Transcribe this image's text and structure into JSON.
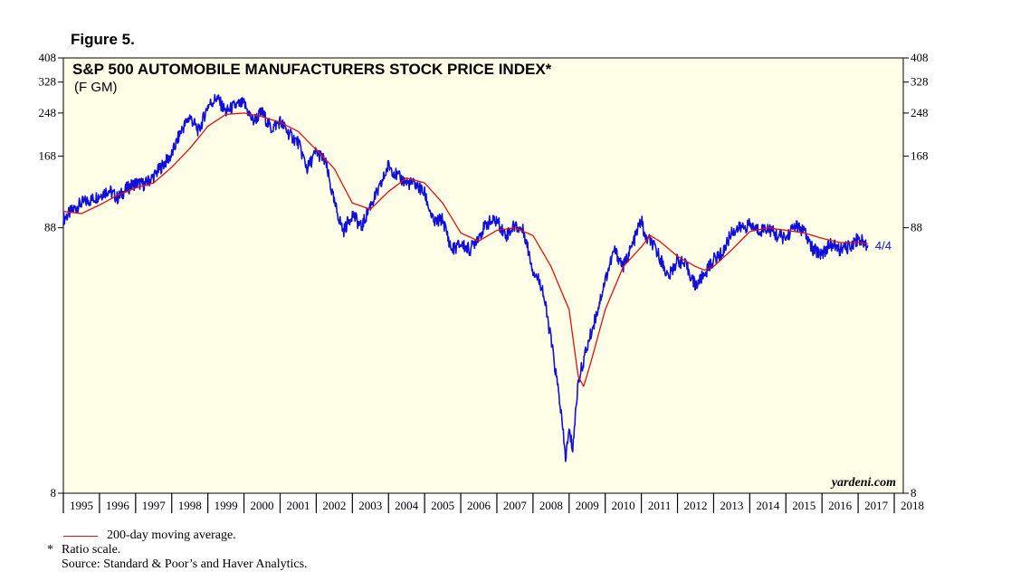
{
  "figure_label": "Figure 5.",
  "chart_data": {
    "type": "line",
    "title": "S&P 500 AUTOMOBILE MANUFACTURERS STOCK PRICE INDEX*",
    "subtitle": "(F GM)",
    "scale": "log",
    "ylim": [
      8,
      408
    ],
    "y_ticks": [
      8,
      88,
      168,
      248,
      328,
      408
    ],
    "x_ticks": [
      "1995",
      "1996",
      "1997",
      "1998",
      "1999",
      "2000",
      "2001",
      "2002",
      "2003",
      "2004",
      "2005",
      "2006",
      "2007",
      "2008",
      "2009",
      "2010",
      "2011",
      "2012",
      "2013",
      "2014",
      "2015",
      "2016",
      "2017",
      "2018"
    ],
    "xlim": [
      1995.0,
      2018.25
    ],
    "watermark": "yardeni.com",
    "end_label": "4/4",
    "series": [
      {
        "name": "S&P 500 Automobile Manufacturers Stock Price Index",
        "color": "#1010d8",
        "points": [
          [
            1995.0,
            95
          ],
          [
            1995.25,
            103
          ],
          [
            1995.5,
            110
          ],
          [
            1995.75,
            113
          ],
          [
            1996.0,
            118
          ],
          [
            1996.25,
            124
          ],
          [
            1996.5,
            115
          ],
          [
            1996.75,
            125
          ],
          [
            1997.0,
            132
          ],
          [
            1997.25,
            130
          ],
          [
            1997.5,
            140
          ],
          [
            1997.75,
            155
          ],
          [
            1998.0,
            170
          ],
          [
            1998.25,
            210
          ],
          [
            1998.5,
            240
          ],
          [
            1998.75,
            210
          ],
          [
            1999.0,
            265
          ],
          [
            1999.25,
            285
          ],
          [
            1999.5,
            250
          ],
          [
            1999.75,
            265
          ],
          [
            2000.0,
            270
          ],
          [
            2000.25,
            230
          ],
          [
            2000.5,
            250
          ],
          [
            2000.75,
            215
          ],
          [
            2001.0,
            230
          ],
          [
            2001.25,
            205
          ],
          [
            2001.5,
            190
          ],
          [
            2001.75,
            150
          ],
          [
            2002.0,
            175
          ],
          [
            2002.25,
            160
          ],
          [
            2002.5,
            110
          ],
          [
            2002.75,
            85
          ],
          [
            2003.0,
            100
          ],
          [
            2003.25,
            88
          ],
          [
            2003.5,
            108
          ],
          [
            2003.75,
            125
          ],
          [
            2004.0,
            155
          ],
          [
            2004.25,
            140
          ],
          [
            2004.5,
            132
          ],
          [
            2004.75,
            130
          ],
          [
            2005.0,
            120
          ],
          [
            2005.25,
            92
          ],
          [
            2005.5,
            95
          ],
          [
            2005.75,
            72
          ],
          [
            2006.0,
            76
          ],
          [
            2006.25,
            72
          ],
          [
            2006.5,
            82
          ],
          [
            2006.75,
            92
          ],
          [
            2007.0,
            94
          ],
          [
            2007.25,
            82
          ],
          [
            2007.5,
            90
          ],
          [
            2007.75,
            85
          ],
          [
            2008.0,
            60
          ],
          [
            2008.25,
            52
          ],
          [
            2008.5,
            32
          ],
          [
            2008.75,
            18
          ],
          [
            2008.9,
            11
          ],
          [
            2009.0,
            14
          ],
          [
            2009.1,
            12
          ],
          [
            2009.25,
            22
          ],
          [
            2009.5,
            30
          ],
          [
            2009.75,
            40
          ],
          [
            2010.0,
            55
          ],
          [
            2010.25,
            72
          ],
          [
            2010.5,
            62
          ],
          [
            2010.75,
            75
          ],
          [
            2011.0,
            95
          ],
          [
            2011.1,
            80
          ],
          [
            2011.25,
            78
          ],
          [
            2011.5,
            68
          ],
          [
            2011.75,
            56
          ],
          [
            2012.0,
            66
          ],
          [
            2012.25,
            62
          ],
          [
            2012.5,
            52
          ],
          [
            2012.75,
            58
          ],
          [
            2013.0,
            66
          ],
          [
            2013.25,
            70
          ],
          [
            2013.5,
            85
          ],
          [
            2013.75,
            88
          ],
          [
            2014.0,
            90
          ],
          [
            2014.25,
            86
          ],
          [
            2014.5,
            88
          ],
          [
            2014.75,
            82
          ],
          [
            2015.0,
            80
          ],
          [
            2015.25,
            90
          ],
          [
            2015.5,
            85
          ],
          [
            2015.75,
            72
          ],
          [
            2016.0,
            70
          ],
          [
            2016.25,
            76
          ],
          [
            2016.5,
            72
          ],
          [
            2016.75,
            74
          ],
          [
            2017.0,
            80
          ],
          [
            2017.27,
            75
          ]
        ]
      },
      {
        "name": "200-day moving average.",
        "color": "#e01010",
        "points": [
          [
            1995.0,
            102
          ],
          [
            1995.5,
            100
          ],
          [
            1996.0,
            108
          ],
          [
            1996.5,
            118
          ],
          [
            1997.0,
            126
          ],
          [
            1997.5,
            132
          ],
          [
            1998.0,
            152
          ],
          [
            1998.5,
            180
          ],
          [
            1999.0,
            220
          ],
          [
            1999.5,
            245
          ],
          [
            2000.0,
            248
          ],
          [
            2000.5,
            240
          ],
          [
            2001.0,
            228
          ],
          [
            2001.5,
            210
          ],
          [
            2002.0,
            178
          ],
          [
            2002.5,
            150
          ],
          [
            2003.0,
            110
          ],
          [
            2003.5,
            104
          ],
          [
            2004.0,
            122
          ],
          [
            2004.5,
            138
          ],
          [
            2005.0,
            132
          ],
          [
            2005.5,
            110
          ],
          [
            2006.0,
            84
          ],
          [
            2006.5,
            78
          ],
          [
            2007.0,
            86
          ],
          [
            2007.5,
            88
          ],
          [
            2008.0,
            82
          ],
          [
            2008.5,
            62
          ],
          [
            2009.0,
            42
          ],
          [
            2009.25,
            23
          ],
          [
            2009.4,
            21
          ],
          [
            2009.6,
            26
          ],
          [
            2010.0,
            42
          ],
          [
            2010.5,
            62
          ],
          [
            2011.0,
            74
          ],
          [
            2011.25,
            82
          ],
          [
            2011.5,
            78
          ],
          [
            2012.0,
            68
          ],
          [
            2012.5,
            62
          ],
          [
            2012.75,
            60
          ],
          [
            2013.0,
            62
          ],
          [
            2013.5,
            72
          ],
          [
            2014.0,
            85
          ],
          [
            2014.5,
            88
          ],
          [
            2015.0,
            86
          ],
          [
            2015.5,
            84
          ],
          [
            2016.0,
            80
          ],
          [
            2016.5,
            77
          ],
          [
            2017.0,
            77
          ],
          [
            2017.27,
            76
          ]
        ]
      }
    ]
  },
  "notes": {
    "legend_label": "200-day moving average.",
    "ratio_note": "Ratio scale.",
    "ratio_star": "*",
    "source": "Source: Standard & Poor’s and Haver Analytics."
  }
}
